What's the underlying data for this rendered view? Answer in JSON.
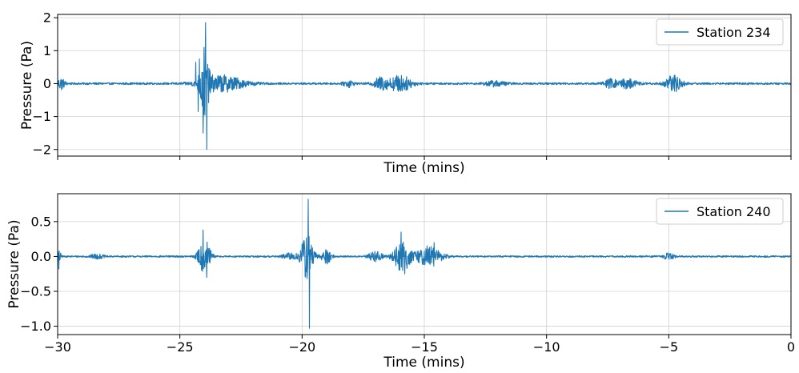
{
  "colors": {
    "series": "#1f77b4",
    "grid": "#d0d0d0",
    "axes": "#000000",
    "legend_border": "#cccccc"
  },
  "chart_data": [
    {
      "type": "line",
      "xlabel": "Time (mins)",
      "ylabel": "Pressure (Pa)",
      "xlim": [
        -30,
        0
      ],
      "ylim": [
        -2.2,
        2.1
      ],
      "xticks": [
        -30,
        -25,
        -20,
        -15,
        -10,
        -5,
        0
      ],
      "xtick_labels_visible": false,
      "yticks": [
        -2,
        -1,
        0,
        1,
        2
      ],
      "ytick_labels": [
        "−2",
        "−1",
        "0",
        "1",
        "2"
      ],
      "grid": true,
      "legend_position": "top-right",
      "series": [
        {
          "name": "Station 234",
          "color": "#1f77b4",
          "noise_amplitude": 0.03,
          "baseline": 0.0,
          "bursts": [
            {
              "center": -29.9,
              "width": 0.15,
              "amplitude": 0.12
            },
            {
              "center": -29.8,
              "width": 0.2,
              "amplitude": 0.1
            },
            {
              "center": -24.0,
              "width": 0.25,
              "amplitude": 1.0
            },
            {
              "center": -23.3,
              "width": 1.3,
              "amplitude": 0.25
            },
            {
              "center": -18.1,
              "width": 0.3,
              "amplitude": 0.1
            },
            {
              "center": -16.8,
              "width": 0.4,
              "amplitude": 0.18
            },
            {
              "center": -16.0,
              "width": 0.7,
              "amplitude": 0.25
            },
            {
              "center": -12.1,
              "width": 0.6,
              "amplitude": 0.08
            },
            {
              "center": -7.4,
              "width": 0.4,
              "amplitude": 0.12
            },
            {
              "center": -6.7,
              "width": 0.6,
              "amplitude": 0.14
            },
            {
              "center": -4.8,
              "width": 0.5,
              "amplitude": 0.25
            }
          ],
          "spikes": [
            {
              "x": -24.2,
              "y": 0.75
            },
            {
              "x": -24.05,
              "y": -1.5
            },
            {
              "x": -23.95,
              "y": 1.85
            },
            {
              "x": -23.9,
              "y": -2.0
            },
            {
              "x": -24.35,
              "y": 0.65
            },
            {
              "x": -24.25,
              "y": -0.85
            }
          ]
        }
      ]
    },
    {
      "type": "line",
      "xlabel": "Time (mins)",
      "ylabel": "Pressure (Pa)",
      "xlim": [
        -30,
        0
      ],
      "ylim": [
        -1.12,
        0.9
      ],
      "xticks": [
        -30,
        -25,
        -20,
        -15,
        -10,
        -5,
        0
      ],
      "xtick_labels": [
        "−30",
        "−25",
        "−20",
        "−15",
        "−10",
        "−5",
        "0"
      ],
      "yticks": [
        -1.0,
        -0.5,
        0.0,
        0.5
      ],
      "ytick_labels": [
        "−1.0",
        "−0.5",
        "0.0",
        "0.5"
      ],
      "grid": true,
      "legend_position": "top-right",
      "series": [
        {
          "name": "Station 240",
          "color": "#1f77b4",
          "noise_amplitude": 0.012,
          "baseline": 0.0,
          "bursts": [
            {
              "center": -29.95,
              "width": 0.1,
              "amplitude": 0.12
            },
            {
              "center": -28.4,
              "width": 0.4,
              "amplitude": 0.03
            },
            {
              "center": -24.0,
              "width": 0.35,
              "amplitude": 0.25
            },
            {
              "center": -20.5,
              "width": 0.4,
              "amplitude": 0.05
            },
            {
              "center": -19.8,
              "width": 0.35,
              "amplitude": 0.35
            },
            {
              "center": -19.0,
              "width": 0.3,
              "amplitude": 0.1
            },
            {
              "center": -17.0,
              "width": 0.4,
              "amplitude": 0.07
            },
            {
              "center": -15.9,
              "width": 0.5,
              "amplitude": 0.22
            },
            {
              "center": -14.8,
              "width": 0.7,
              "amplitude": 0.15
            },
            {
              "center": -5.0,
              "width": 0.3,
              "amplitude": 0.05
            }
          ],
          "spikes": [
            {
              "x": -24.05,
              "y": 0.38
            },
            {
              "x": -23.9,
              "y": -0.3
            },
            {
              "x": -19.75,
              "y": 0.82
            },
            {
              "x": -19.7,
              "y": -1.03
            },
            {
              "x": -15.95,
              "y": 0.35
            },
            {
              "x": -15.8,
              "y": -0.25
            },
            {
              "x": -14.6,
              "y": 0.2
            },
            {
              "x": -29.95,
              "y": -0.18
            }
          ]
        }
      ]
    }
  ]
}
